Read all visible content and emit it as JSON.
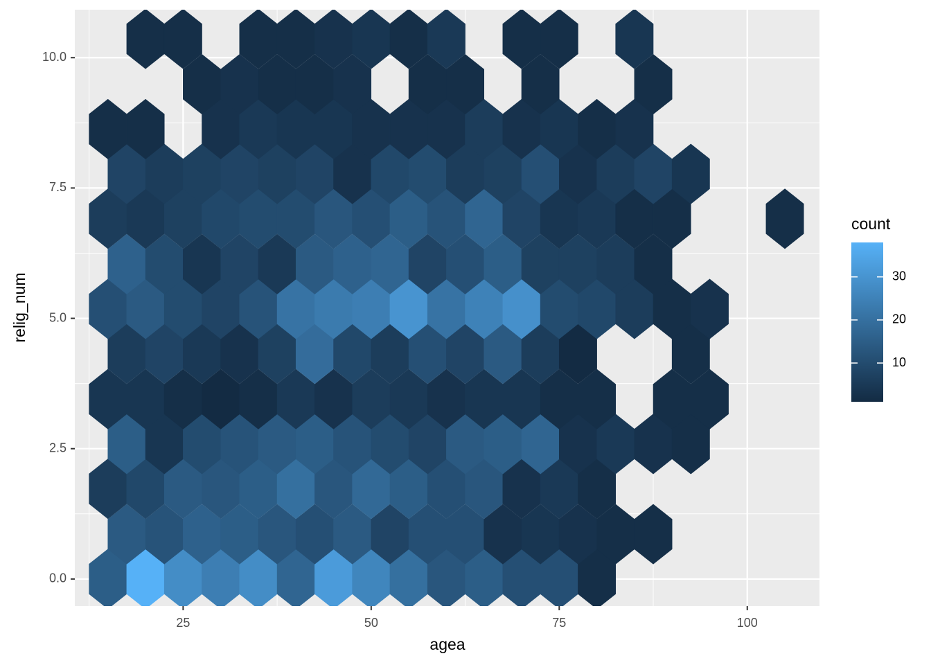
{
  "chart_data": {
    "type": "hexbin",
    "x_label": "agea",
    "y_label": "relig_num",
    "legend_title": "count",
    "xlim": [
      10.6,
      109.6
    ],
    "ylim": [
      -0.52,
      10.92
    ],
    "xticks": [
      25,
      50,
      75,
      100
    ],
    "yticks": [
      {
        "value": 0,
        "label": "0.0"
      },
      {
        "value": 2.5,
        "label": "2.5"
      },
      {
        "value": 5,
        "label": "5.0"
      },
      {
        "value": 7.5,
        "label": "7.5"
      },
      {
        "value": 10,
        "label": "10.0"
      }
    ],
    "grid": true,
    "color_low": "#132B43",
    "color_high": "#56B1F7",
    "clim": [
      1,
      38
    ],
    "cticks": [
      10,
      20,
      30
    ],
    "x": [
      15,
      20,
      25,
      30,
      35,
      40,
      45,
      50,
      55,
      60,
      65,
      70,
      75,
      80,
      17.5,
      22.5,
      27.5,
      32.5,
      37.5,
      42.5,
      47.5,
      52.5,
      57.5,
      62.5,
      67.5,
      72.5,
      77.5,
      82.5,
      87.5,
      15,
      20,
      25,
      30,
      35,
      40,
      45,
      50,
      55,
      60,
      65,
      70,
      75,
      80,
      17.5,
      22.5,
      27.5,
      32.5,
      37.5,
      42.5,
      47.5,
      52.5,
      57.5,
      62.5,
      67.5,
      72.5,
      77.5,
      82.5,
      87.5,
      92.5,
      15,
      20,
      25,
      30,
      35,
      40,
      45,
      50,
      55,
      60,
      65,
      70,
      75,
      80,
      90,
      95,
      17.5,
      22.5,
      27.5,
      32.5,
      37.5,
      42.5,
      47.5,
      52.5,
      57.5,
      62.5,
      67.5,
      72.5,
      77.5,
      92.5,
      15,
      20,
      25,
      30,
      35,
      40,
      45,
      50,
      55,
      60,
      65,
      70,
      75,
      80,
      85,
      90,
      95,
      17.5,
      22.5,
      27.5,
      32.5,
      37.5,
      42.5,
      47.5,
      52.5,
      57.5,
      62.5,
      67.5,
      72.5,
      77.5,
      82.5,
      87.5,
      15,
      20,
      25,
      30,
      35,
      40,
      45,
      50,
      55,
      60,
      65,
      70,
      75,
      80,
      85,
      90,
      105,
      17.5,
      22.5,
      27.5,
      32.5,
      37.5,
      42.5,
      47.5,
      52.5,
      57.5,
      62.5,
      67.5,
      72.5,
      77.5,
      82.5,
      87.5,
      92.5,
      15,
      20,
      30,
      35,
      40,
      45,
      50,
      55,
      60,
      65,
      70,
      75,
      80,
      85,
      27.5,
      32.5,
      37.5,
      42.5,
      47.5,
      57.5,
      62.5,
      72.5,
      87.5,
      20,
      25,
      35,
      40,
      45,
      50,
      55,
      60,
      70,
      75,
      85
    ],
    "y": [
      0,
      0,
      0,
      0,
      0,
      0,
      0,
      0,
      0,
      0,
      0,
      0,
      0,
      0,
      0.86,
      0.86,
      0.86,
      0.86,
      0.86,
      0.86,
      0.86,
      0.86,
      0.86,
      0.86,
      0.86,
      0.86,
      0.86,
      0.86,
      0.86,
      1.73,
      1.73,
      1.73,
      1.73,
      1.73,
      1.73,
      1.73,
      1.73,
      1.73,
      1.73,
      1.73,
      1.73,
      1.73,
      1.73,
      2.59,
      2.59,
      2.59,
      2.59,
      2.59,
      2.59,
      2.59,
      2.59,
      2.59,
      2.59,
      2.59,
      2.59,
      2.59,
      2.59,
      2.59,
      2.59,
      3.45,
      3.45,
      3.45,
      3.45,
      3.45,
      3.45,
      3.45,
      3.45,
      3.45,
      3.45,
      3.45,
      3.45,
      3.45,
      3.45,
      3.45,
      3.45,
      4.32,
      4.32,
      4.32,
      4.32,
      4.32,
      4.32,
      4.32,
      4.32,
      4.32,
      4.32,
      4.32,
      4.32,
      4.32,
      4.32,
      5.18,
      5.18,
      5.18,
      5.18,
      5.18,
      5.18,
      5.18,
      5.18,
      5.18,
      5.18,
      5.18,
      5.18,
      5.18,
      5.18,
      5.18,
      5.18,
      5.18,
      6.04,
      6.04,
      6.04,
      6.04,
      6.04,
      6.04,
      6.04,
      6.04,
      6.04,
      6.04,
      6.04,
      6.04,
      6.04,
      6.04,
      6.04,
      6.91,
      6.91,
      6.91,
      6.91,
      6.91,
      6.91,
      6.91,
      6.91,
      6.91,
      6.91,
      6.91,
      6.91,
      6.91,
      6.91,
      6.91,
      6.91,
      6.91,
      7.77,
      7.77,
      7.77,
      7.77,
      7.77,
      7.77,
      7.77,
      7.77,
      7.77,
      7.77,
      7.77,
      7.77,
      7.77,
      7.77,
      7.77,
      7.77,
      8.63,
      8.63,
      8.63,
      8.63,
      8.63,
      8.63,
      8.63,
      8.63,
      8.63,
      8.63,
      8.63,
      8.63,
      8.63,
      8.63,
      9.49,
      9.49,
      9.49,
      9.49,
      9.49,
      9.49,
      9.49,
      9.49,
      9.49,
      10.36,
      10.36,
      10.36,
      10.36,
      10.36,
      10.36,
      10.36,
      10.36,
      10.36,
      10.36,
      10.36
    ],
    "values": [
      15,
      38,
      28,
      24,
      28,
      17,
      32,
      26,
      20,
      13,
      15,
      11,
      11,
      2,
      14,
      12,
      16,
      15,
      13,
      11,
      14,
      8,
      11,
      11,
      3,
      4,
      3,
      2,
      2,
      6,
      9,
      14,
      13,
      15,
      20,
      13,
      18,
      15,
      11,
      13,
      3,
      5,
      2,
      15,
      4,
      10,
      12,
      14,
      15,
      12,
      10,
      8,
      14,
      15,
      17,
      3,
      5,
      3,
      2,
      4,
      4,
      2,
      1,
      2,
      5,
      3,
      6,
      5,
      3,
      4,
      4,
      2,
      2,
      2,
      2,
      6,
      8,
      5,
      3,
      7,
      19,
      9,
      6,
      11,
      8,
      14,
      6,
      1,
      2,
      11,
      14,
      10,
      8,
      12,
      21,
      23,
      24,
      30,
      21,
      25,
      29,
      10,
      9,
      6,
      2,
      3,
      16,
      10,
      4,
      8,
      5,
      14,
      16,
      17,
      8,
      11,
      15,
      7,
      7,
      6,
      2,
      6,
      5,
      7,
      9,
      10,
      10,
      13,
      11,
      15,
      12,
      17,
      8,
      4,
      5,
      2,
      2,
      2,
      8,
      6,
      7,
      8,
      7,
      8,
      3,
      9,
      10,
      6,
      7,
      11,
      3,
      6,
      8,
      4,
      2,
      2,
      3,
      5,
      4,
      4,
      3,
      3,
      3,
      6,
      3,
      4,
      2,
      3,
      2,
      3,
      2,
      2,
      3,
      2,
      2,
      2,
      2,
      2,
      2,
      2,
      2,
      3,
      4,
      2,
      5,
      2,
      2,
      4
    ]
  }
}
